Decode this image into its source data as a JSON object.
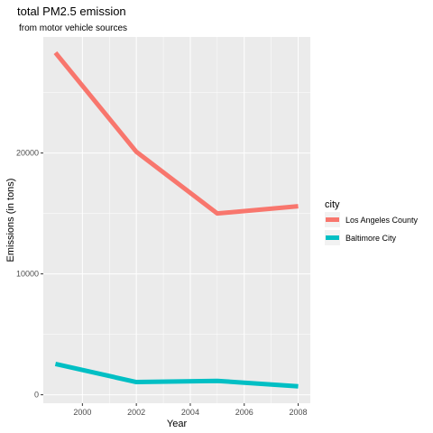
{
  "chart_data": {
    "type": "line",
    "title": "total PM2.5 emission",
    "subtitle": "from motor vehicle sources",
    "xlabel": "Year",
    "ylabel": "Emissions (in tons)",
    "x": [
      1999,
      2002,
      2005,
      2008
    ],
    "xlim": [
      1998.55,
      2008.45
    ],
    "ylim": [
      -700,
      29600
    ],
    "x_ticks": [
      2000,
      2002,
      2004,
      2006,
      2008
    ],
    "y_ticks": [
      0,
      10000,
      20000
    ],
    "grid": true,
    "background_color": "#EBEBEB",
    "grid_color": "#FFFFFF",
    "legend": {
      "title": "city",
      "position": "right"
    },
    "series": [
      {
        "name": "Los Angeles County",
        "color": "#F8766D",
        "values": [
          28300,
          20100,
          15000,
          15600
        ]
      },
      {
        "name": "Baltimore City",
        "color": "#00BFC4",
        "values": [
          2550,
          1050,
          1150,
          700
        ]
      }
    ]
  }
}
